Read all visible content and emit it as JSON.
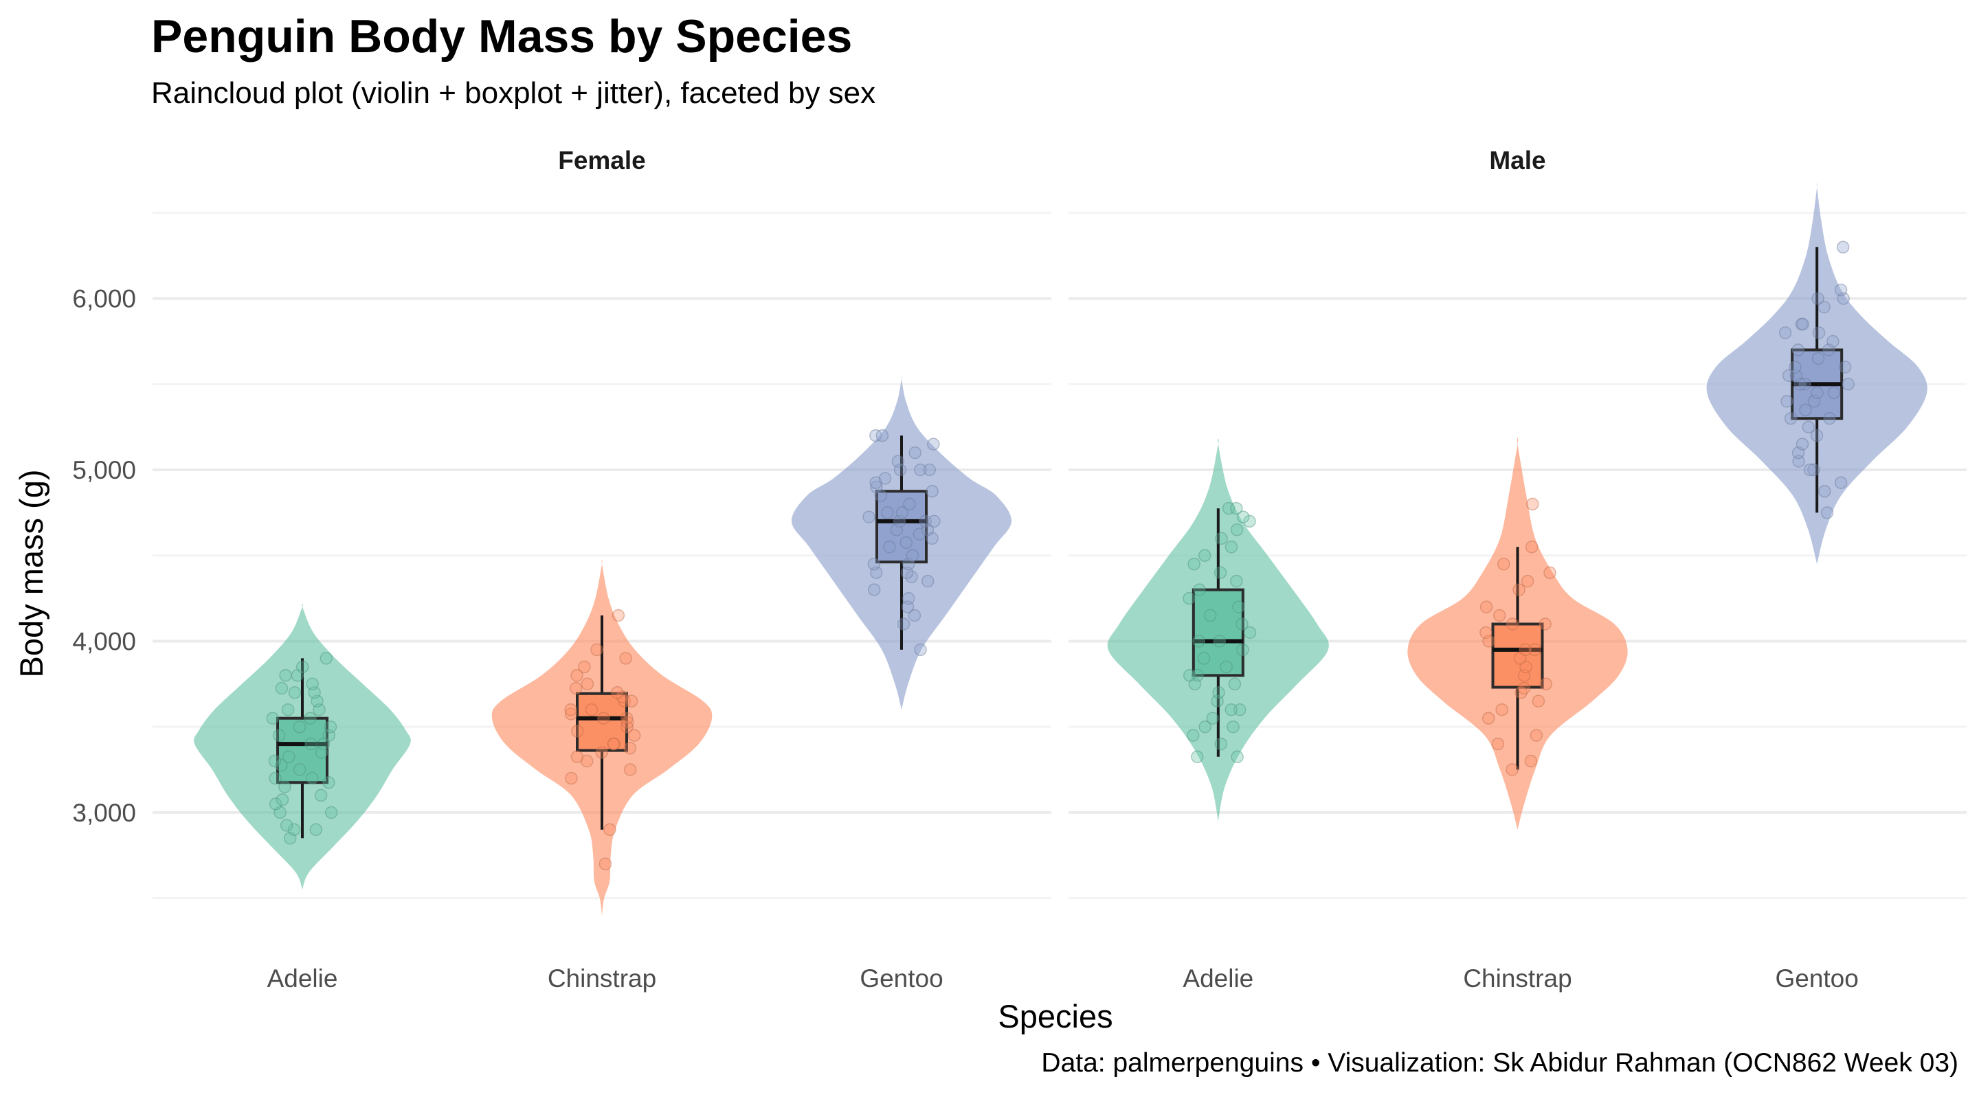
{
  "chart_data": {
    "type": "violin",
    "title": "Penguin Body Mass by Species",
    "subtitle": "Raincloud plot (violin + boxplot + jitter), faceted by sex",
    "caption": "Data: palmerpenguins • Visualization: Sk Abidur Rahman (OCN862 Week 03)",
    "xlabel": "Species",
    "ylabel": "Body mass (g)",
    "ylim": [
      2350,
      6700
    ],
    "y_ticks": [
      3000,
      4000,
      5000,
      6000
    ],
    "y_tick_labels": [
      "3,000",
      "4,000",
      "5,000",
      "6,000"
    ],
    "categories": [
      "Adelie",
      "Chinstrap",
      "Gentoo"
    ],
    "colors": {
      "Adelie": "#66c2a5",
      "Chinstrap": "#fc8d62",
      "Gentoo": "#8da0cb"
    },
    "grid": true,
    "legend": "none",
    "facets": [
      {
        "name": "Female",
        "groups": [
          {
            "species": "Adelie",
            "min": 2850,
            "q1": 3175,
            "median": 3400,
            "q3": 3550,
            "max": 3900,
            "density": [
              [
                2550,
                0.0
              ],
              [
                2650,
                0.06
              ],
              [
                2800,
                0.28
              ],
              [
                2950,
                0.5
              ],
              [
                3100,
                0.68
              ],
              [
                3250,
                0.82
              ],
              [
                3400,
                0.98
              ],
              [
                3480,
                0.94
              ],
              [
                3600,
                0.8
              ],
              [
                3750,
                0.55
              ],
              [
                3900,
                0.3
              ],
              [
                4050,
                0.1
              ],
              [
                4200,
                0.0
              ]
            ],
            "points": [
              2850,
              2900,
              2900,
              2925,
              3000,
              3000,
              3050,
              3075,
              3100,
              3150,
              3175,
              3200,
              3200,
              3250,
              3275,
              3300,
              3325,
              3350,
              3400,
              3400,
              3450,
              3450,
              3500,
              3500,
              3550,
              3550,
              3600,
              3600,
              3650,
              3700,
              3700,
              3725,
              3750,
              3800,
              3800,
              3850,
              3900
            ]
          },
          {
            "species": "Chinstrap",
            "min": 2900,
            "q1": 3362,
            "median": 3550,
            "q3": 3694,
            "max": 4150,
            "density": [
              [
                2400,
                0.0
              ],
              [
                2500,
                0.02
              ],
              [
                2600,
                0.07
              ],
              [
                2750,
                0.08
              ],
              [
                2900,
                0.12
              ],
              [
                3100,
                0.28
              ],
              [
                3250,
                0.6
              ],
              [
                3400,
                0.88
              ],
              [
                3550,
                1.0
              ],
              [
                3650,
                0.92
              ],
              [
                3800,
                0.55
              ],
              [
                3950,
                0.3
              ],
              [
                4100,
                0.15
              ],
              [
                4250,
                0.06
              ],
              [
                4450,
                0.0
              ]
            ],
            "points": [
              2700,
              2900,
              3200,
              3250,
              3300,
              3325,
              3350,
              3375,
              3400,
              3400,
              3450,
              3475,
              3500,
              3525,
              3550,
              3550,
              3575,
              3600,
              3600,
              3650,
              3650,
              3675,
              3700,
              3725,
              3750,
              3800,
              3850,
              3900,
              3950,
              4150
            ]
          },
          {
            "species": "Gentoo",
            "min": 3950,
            "q1": 4462,
            "median": 4700,
            "q3": 4875,
            "max": 5200,
            "density": [
              [
                3600,
                0.0
              ],
              [
                3750,
                0.06
              ],
              [
                3950,
                0.18
              ],
              [
                4150,
                0.4
              ],
              [
                4350,
                0.62
              ],
              [
                4550,
                0.84
              ],
              [
                4700,
                1.0
              ],
              [
                4850,
                0.86
              ],
              [
                4950,
                0.62
              ],
              [
                5100,
                0.35
              ],
              [
                5250,
                0.14
              ],
              [
                5400,
                0.04
              ],
              [
                5530,
                0.0
              ]
            ],
            "points": [
              3950,
              4100,
              4150,
              4200,
              4250,
              4300,
              4350,
              4375,
              4400,
              4400,
              4450,
              4450,
              4500,
              4550,
              4575,
              4600,
              4625,
              4650,
              4650,
              4700,
              4700,
              4700,
              4725,
              4750,
              4750,
              4800,
              4850,
              4875,
              4900,
              4925,
              4950,
              5000,
              5000,
              5000,
              5050,
              5100,
              5150,
              5200,
              5200
            ]
          }
        ]
      },
      {
        "name": "Male",
        "groups": [
          {
            "species": "Adelie",
            "min": 3325,
            "q1": 3800,
            "median": 4000,
            "q3": 4300,
            "max": 4775,
            "density": [
              [
                2950,
                0.0
              ],
              [
                3150,
                0.06
              ],
              [
                3350,
                0.2
              ],
              [
                3550,
                0.42
              ],
              [
                3750,
                0.72
              ],
              [
                3950,
                1.0
              ],
              [
                4100,
                0.9
              ],
              [
                4300,
                0.68
              ],
              [
                4500,
                0.45
              ],
              [
                4700,
                0.22
              ],
              [
                4900,
                0.08
              ],
              [
                5150,
                0.0
              ]
            ],
            "points": [
              3325,
              3325,
              3400,
              3450,
              3500,
              3500,
              3550,
              3600,
              3600,
              3650,
              3700,
              3750,
              3750,
              3800,
              3800,
              3850,
              3900,
              3950,
              4000,
              4000,
              4050,
              4100,
              4150,
              4200,
              4250,
              4300,
              4350,
              4400,
              4450,
              4500,
              4550,
              4600,
              4650,
              4700,
              4725,
              4775,
              4775
            ]
          },
          {
            "species": "Chinstrap",
            "min": 3250,
            "q1": 3731,
            "median": 3950,
            "q3": 4100,
            "max": 4550,
            "density": [
              [
                2900,
                0.0
              ],
              [
                3050,
                0.06
              ],
              [
                3250,
                0.16
              ],
              [
                3450,
                0.3
              ],
              [
                3650,
                0.68
              ],
              [
                3800,
                0.92
              ],
              [
                3950,
                1.0
              ],
              [
                4100,
                0.88
              ],
              [
                4250,
                0.5
              ],
              [
                4400,
                0.32
              ],
              [
                4600,
                0.16
              ],
              [
                4850,
                0.08
              ],
              [
                5150,
                0.0
              ]
            ],
            "points": [
              3250,
              3300,
              3400,
              3450,
              3550,
              3600,
              3650,
              3700,
              3725,
              3750,
              3800,
              3850,
              3900,
              3950,
              3950,
              4000,
              4050,
              4100,
              4100,
              4150,
              4200,
              4300,
              4350,
              4400,
              4450,
              4550,
              4800
            ]
          },
          {
            "species": "Gentoo",
            "min": 4750,
            "q1": 5300,
            "median": 5500,
            "q3": 5700,
            "max": 6300,
            "density": [
              [
                4450,
                0.0
              ],
              [
                4650,
                0.08
              ],
              [
                4850,
                0.22
              ],
              [
                5050,
                0.5
              ],
              [
                5250,
                0.82
              ],
              [
                5450,
                1.0
              ],
              [
                5600,
                0.92
              ],
              [
                5750,
                0.65
              ],
              [
                5900,
                0.4
              ],
              [
                6050,
                0.22
              ],
              [
                6250,
                0.1
              ],
              [
                6450,
                0.04
              ],
              [
                6650,
                0.0
              ]
            ],
            "points": [
              4750,
              4875,
              4925,
              5000,
              5000,
              5050,
              5100,
              5150,
              5200,
              5250,
              5300,
              5300,
              5350,
              5400,
              5400,
              5450,
              5450,
              5500,
              5500,
              5500,
              5550,
              5550,
              5600,
              5600,
              5650,
              5700,
              5700,
              5750,
              5800,
              5800,
              5850,
              5850,
              5950,
              6000,
              6000,
              6050,
              6300
            ]
          }
        ]
      }
    ]
  }
}
